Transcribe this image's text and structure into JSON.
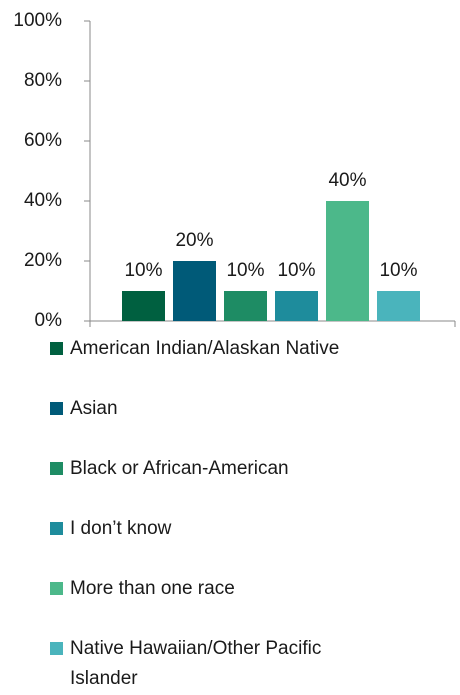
{
  "chart_data": {
    "type": "bar",
    "categories": [
      null
    ],
    "series": [
      {
        "name": "American Indian/Alaskan Native",
        "color": "#006040",
        "values": [
          10
        ],
        "value_labels": [
          "10%"
        ]
      },
      {
        "name": "Asian",
        "color": "#005a78",
        "values": [
          20
        ],
        "value_labels": [
          "20%"
        ]
      },
      {
        "name": "Black or African-American",
        "color": "#1e8c64",
        "values": [
          10
        ],
        "value_labels": [
          "10%"
        ]
      },
      {
        "name": "I don’t know",
        "color": "#1e8c9c",
        "values": [
          10
        ],
        "value_labels": [
          "10%"
        ]
      },
      {
        "name": "More than one race",
        "color": "#4cb88a",
        "values": [
          40
        ],
        "value_labels": [
          "40%"
        ]
      },
      {
        "name": "Native Hawaiian/Other Pacific Islander",
        "color": "#4ab4bc",
        "values": [
          10
        ],
        "value_labels": [
          "10%"
        ]
      }
    ],
    "ylim": [
      0,
      100
    ],
    "yticks": [
      {
        "value": 0,
        "label": "0%"
      },
      {
        "value": 20,
        "label": "20%"
      },
      {
        "value": 40,
        "label": "40%"
      },
      {
        "value": 60,
        "label": "60%"
      },
      {
        "value": 80,
        "label": "80%"
      },
      {
        "value": 100,
        "label": "100%"
      }
    ],
    "legend": "bottom"
  }
}
